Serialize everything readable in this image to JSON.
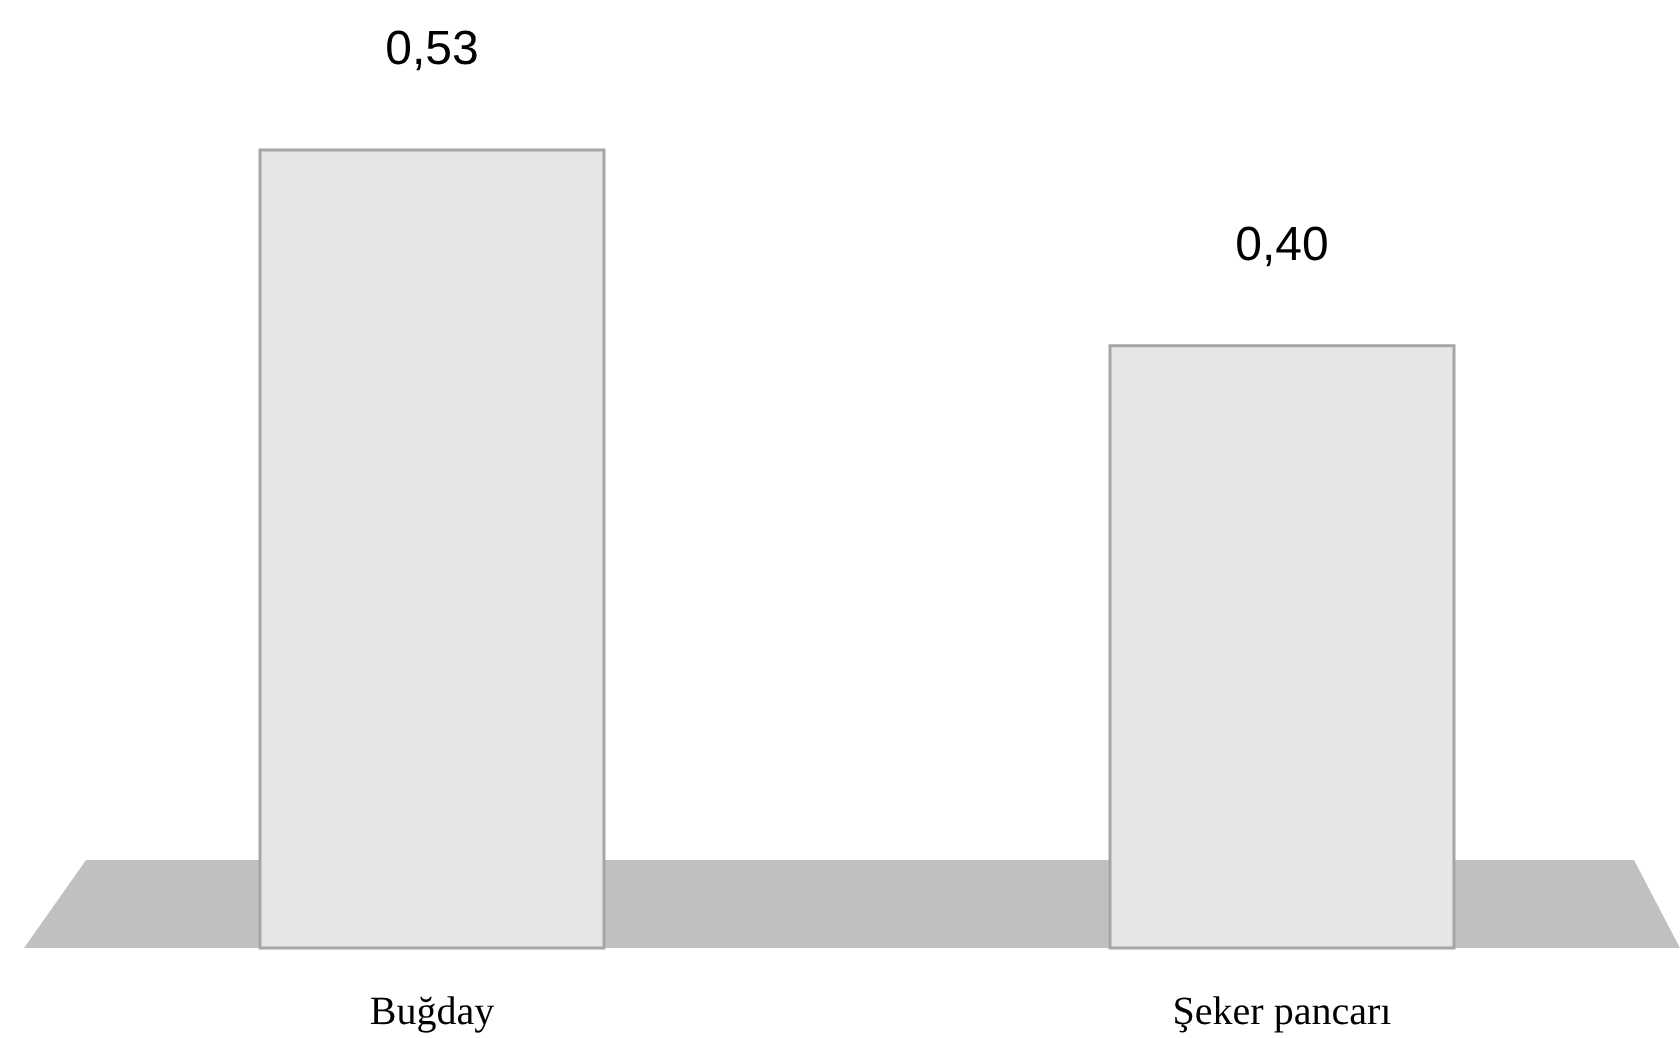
{
  "chart_data": {
    "type": "bar",
    "categories": [
      "Buğday",
      "Şeker pancarı"
    ],
    "values": [
      0.53,
      0.4
    ],
    "value_labels": [
      "0,53",
      "0,40"
    ],
    "color": "#e6e6e6",
    "tick_labels": "x"
  }
}
